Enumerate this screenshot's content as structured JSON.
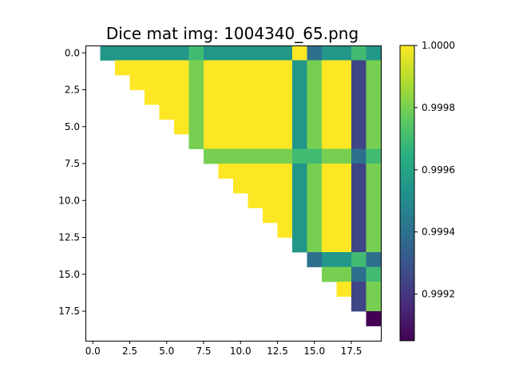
{
  "chart_data": {
    "type": "heatmap",
    "title": "Dice mat img: 1004340_65.png",
    "n": 20,
    "x_ticks": [
      "0.0",
      "2.5",
      "5.0",
      "7.5",
      "10.0",
      "12.5",
      "15.0",
      "17.5"
    ],
    "y_ticks": [
      "0.0",
      "2.5",
      "5.0",
      "7.5",
      "10.0",
      "12.5",
      "15.0",
      "17.5"
    ],
    "colorbar": {
      "min": 0.99905,
      "max": 1.0,
      "ticks": [
        "0.9992",
        "0.9994",
        "0.9996",
        "0.9998",
        "1.0000"
      ],
      "colormap": "viridis"
    },
    "matrix": [
      [
        null,
        0.99955,
        0.99955,
        0.99955,
        0.99955,
        0.99955,
        0.99955,
        0.9997,
        0.99955,
        0.99955,
        0.99955,
        0.99955,
        0.99955,
        0.99955,
        1.0,
        0.9994,
        0.99955,
        0.99955,
        0.9997,
        0.99955
      ],
      [
        null,
        null,
        1.0,
        1.0,
        1.0,
        1.0,
        1.0,
        0.9998,
        1.0,
        1.0,
        1.0,
        1.0,
        1.0,
        1.0,
        0.99955,
        0.9998,
        1.0,
        1.0,
        0.99925,
        0.9998
      ],
      [
        null,
        null,
        null,
        1.0,
        1.0,
        1.0,
        1.0,
        0.9998,
        1.0,
        1.0,
        1.0,
        1.0,
        1.0,
        1.0,
        0.99955,
        0.9998,
        1.0,
        1.0,
        0.99925,
        0.9998
      ],
      [
        null,
        null,
        null,
        null,
        1.0,
        1.0,
        1.0,
        0.9998,
        1.0,
        1.0,
        1.0,
        1.0,
        1.0,
        1.0,
        0.99955,
        0.9998,
        1.0,
        1.0,
        0.99925,
        0.9998
      ],
      [
        null,
        null,
        null,
        null,
        null,
        1.0,
        1.0,
        0.9998,
        1.0,
        1.0,
        1.0,
        1.0,
        1.0,
        1.0,
        0.99955,
        0.9998,
        1.0,
        1.0,
        0.99925,
        0.9998
      ],
      [
        null,
        null,
        null,
        null,
        null,
        null,
        1.0,
        0.9998,
        1.0,
        1.0,
        1.0,
        1.0,
        1.0,
        1.0,
        0.99955,
        0.9998,
        1.0,
        1.0,
        0.99925,
        0.9998
      ],
      [
        null,
        null,
        null,
        null,
        null,
        null,
        null,
        0.9998,
        1.0,
        1.0,
        1.0,
        1.0,
        1.0,
        1.0,
        0.99955,
        0.9998,
        1.0,
        1.0,
        0.99925,
        0.9998
      ],
      [
        null,
        null,
        null,
        null,
        null,
        null,
        null,
        null,
        0.9998,
        0.9998,
        0.9998,
        0.9998,
        0.9998,
        0.9998,
        0.9997,
        0.9997,
        0.9998,
        0.9998,
        0.9994,
        0.9997
      ],
      [
        null,
        null,
        null,
        null,
        null,
        null,
        null,
        null,
        null,
        1.0,
        1.0,
        1.0,
        1.0,
        1.0,
        0.99955,
        0.9998,
        1.0,
        1.0,
        0.99925,
        0.9998
      ],
      [
        null,
        null,
        null,
        null,
        null,
        null,
        null,
        null,
        null,
        null,
        1.0,
        1.0,
        1.0,
        1.0,
        0.99955,
        0.9998,
        1.0,
        1.0,
        0.99925,
        0.9998
      ],
      [
        null,
        null,
        null,
        null,
        null,
        null,
        null,
        null,
        null,
        null,
        null,
        1.0,
        1.0,
        1.0,
        0.99955,
        0.9998,
        1.0,
        1.0,
        0.99925,
        0.9998
      ],
      [
        null,
        null,
        null,
        null,
        null,
        null,
        null,
        null,
        null,
        null,
        null,
        null,
        1.0,
        1.0,
        0.99955,
        0.9998,
        1.0,
        1.0,
        0.99925,
        0.9998
      ],
      [
        null,
        null,
        null,
        null,
        null,
        null,
        null,
        null,
        null,
        null,
        null,
        null,
        null,
        1.0,
        0.99955,
        0.9998,
        1.0,
        1.0,
        0.99925,
        0.9998
      ],
      [
        null,
        null,
        null,
        null,
        null,
        null,
        null,
        null,
        null,
        null,
        null,
        null,
        null,
        null,
        0.99955,
        0.9998,
        1.0,
        1.0,
        0.99925,
        0.9998
      ],
      [
        null,
        null,
        null,
        null,
        null,
        null,
        null,
        null,
        null,
        null,
        null,
        null,
        null,
        null,
        null,
        0.9994,
        0.99955,
        0.99955,
        0.9997,
        0.9994
      ],
      [
        null,
        null,
        null,
        null,
        null,
        null,
        null,
        null,
        null,
        null,
        null,
        null,
        null,
        null,
        null,
        null,
        0.9998,
        0.9998,
        0.9994,
        0.9997
      ],
      [
        null,
        null,
        null,
        null,
        null,
        null,
        null,
        null,
        null,
        null,
        null,
        null,
        null,
        null,
        null,
        null,
        null,
        1.0,
        0.99925,
        0.9998
      ],
      [
        null,
        null,
        null,
        null,
        null,
        null,
        null,
        null,
        null,
        null,
        null,
        null,
        null,
        null,
        null,
        null,
        null,
        null,
        0.99925,
        0.9998
      ],
      [
        null,
        null,
        null,
        null,
        null,
        null,
        null,
        null,
        null,
        null,
        null,
        null,
        null,
        null,
        null,
        null,
        null,
        null,
        null,
        0.99905
      ],
      [
        null,
        null,
        null,
        null,
        null,
        null,
        null,
        null,
        null,
        null,
        null,
        null,
        null,
        null,
        null,
        null,
        null,
        null,
        null,
        null
      ]
    ]
  }
}
